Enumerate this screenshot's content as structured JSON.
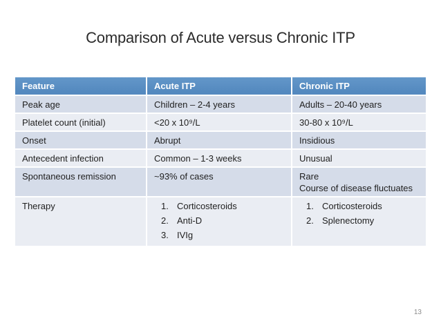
{
  "slide": {
    "title": "Comparison of Acute versus Chronic ITP",
    "page_number": "13"
  },
  "colors": {
    "header_bg": "#5489BF",
    "header_bg_top": "#6397C9",
    "band_dark": "#D5DCE9",
    "band_light": "#EAEDF3",
    "header_text": "#FFFFFF",
    "body_text": "#212121",
    "title_text": "#2B2B2B",
    "page_number": "#8C8C8C"
  },
  "table": {
    "columns": [
      "Feature",
      "Acute ITP",
      "Chronic ITP"
    ],
    "rows": [
      {
        "feature": "Peak age",
        "acute": {
          "lines": [
            "Children – 2-4 years"
          ]
        },
        "chronic": {
          "lines": [
            "Adults – 20-40 years"
          ]
        },
        "size": "single"
      },
      {
        "feature": "Platelet count (initial)",
        "acute": {
          "lines": [
            "<20 x 10⁹/L"
          ]
        },
        "chronic": {
          "lines": [
            "30-80 x 10⁹/L"
          ]
        },
        "size": "single"
      },
      {
        "feature": "Onset",
        "acute": {
          "lines": [
            "Abrupt"
          ]
        },
        "chronic": {
          "lines": [
            "Insidious"
          ]
        },
        "size": "single"
      },
      {
        "feature": "Antecedent infection",
        "acute": {
          "lines": [
            "Common – 1-3 weeks"
          ]
        },
        "chronic": {
          "lines": [
            "Unusual"
          ]
        },
        "size": "single"
      },
      {
        "feature": "Spontaneous remission",
        "acute": {
          "lines": [
            "~93% of cases"
          ]
        },
        "chronic": {
          "lines": [
            "Rare",
            "Course of disease fluctuates"
          ]
        },
        "size": "double"
      },
      {
        "feature": "Therapy",
        "acute": {
          "list": [
            "Corticosteroids",
            "Anti-D",
            "IVIg"
          ]
        },
        "chronic": {
          "list": [
            "Corticosteroids",
            "Splenectomy"
          ]
        },
        "size": "tall"
      }
    ]
  }
}
